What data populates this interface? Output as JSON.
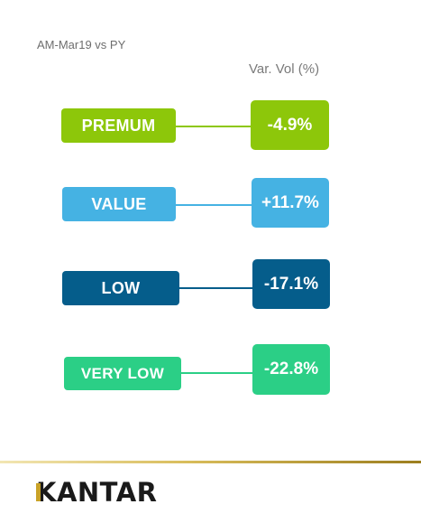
{
  "header": {
    "period": "AM-Mar19 vs PY",
    "metric_label": "Var. Vol (%)"
  },
  "segments": [
    {
      "label": "PREMUM",
      "value": "-4.9%",
      "color": "#8dc70a"
    },
    {
      "label": "VALUE",
      "value": "+11.7%",
      "color": "#45b2e3"
    },
    {
      "label": "LOW",
      "value": "-17.1%",
      "color": "#055d8b"
    },
    {
      "label": "VERY LOW",
      "value": "-22.8%",
      "color": "#2bcf86"
    }
  ],
  "footer": {
    "brand": "KANTAR",
    "accent_color": "#c9a227"
  }
}
